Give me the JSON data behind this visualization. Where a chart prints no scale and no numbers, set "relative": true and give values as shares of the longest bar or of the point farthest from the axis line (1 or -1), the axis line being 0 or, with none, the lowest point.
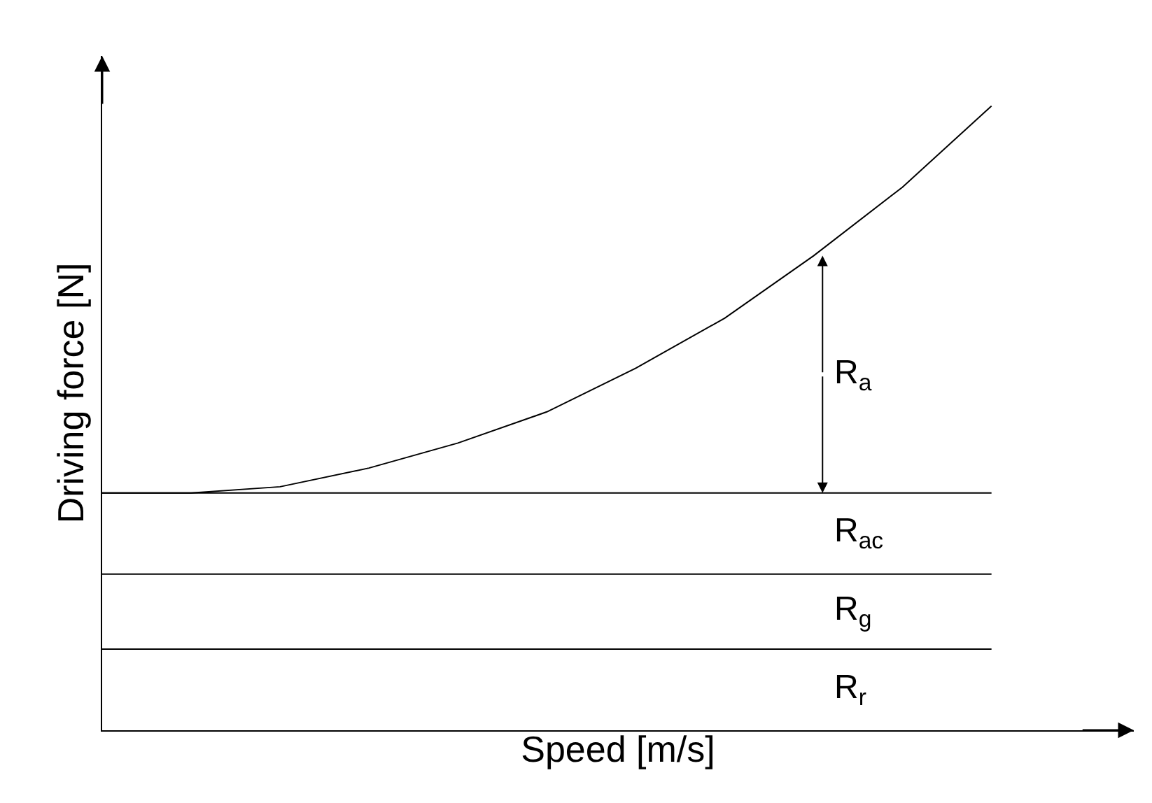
{
  "chart_data": {
    "type": "line",
    "relative": true,
    "xlabel": "Speed [m/s]",
    "ylabel": "Driving force [N]",
    "categories": [
      null,
      null,
      null,
      null,
      null,
      null,
      null,
      null,
      null,
      null,
      null
    ],
    "series": [
      {
        "color": "#000000",
        "values": [
          0.38,
          0.38,
          0.39,
          0.42,
          0.46,
          0.51,
          0.58,
          0.66,
          0.76,
          0.87,
          1.0
        ]
      },
      {
        "color": "#000000",
        "values": [
          0.38,
          0.38,
          0.38,
          0.38,
          0.38,
          0.38,
          0.38,
          0.38,
          0.38,
          0.38,
          0.38
        ]
      },
      {
        "color": "#000000",
        "values": [
          0.25,
          0.25,
          0.25,
          0.25,
          0.25,
          0.25,
          0.25,
          0.25,
          0.25,
          0.25,
          0.25
        ]
      },
      {
        "color": "#000000",
        "values": [
          0.13,
          0.13,
          0.13,
          0.13,
          0.13,
          0.13,
          0.13,
          0.13,
          0.13,
          0.13,
          0.13
        ]
      }
    ],
    "annotations": [
      "R$_{a}$",
      "R$_{ac}$",
      "R$_{g}$",
      "R$_{r}$"
    ],
    "marker": "none",
    "line_style": "solid"
  }
}
